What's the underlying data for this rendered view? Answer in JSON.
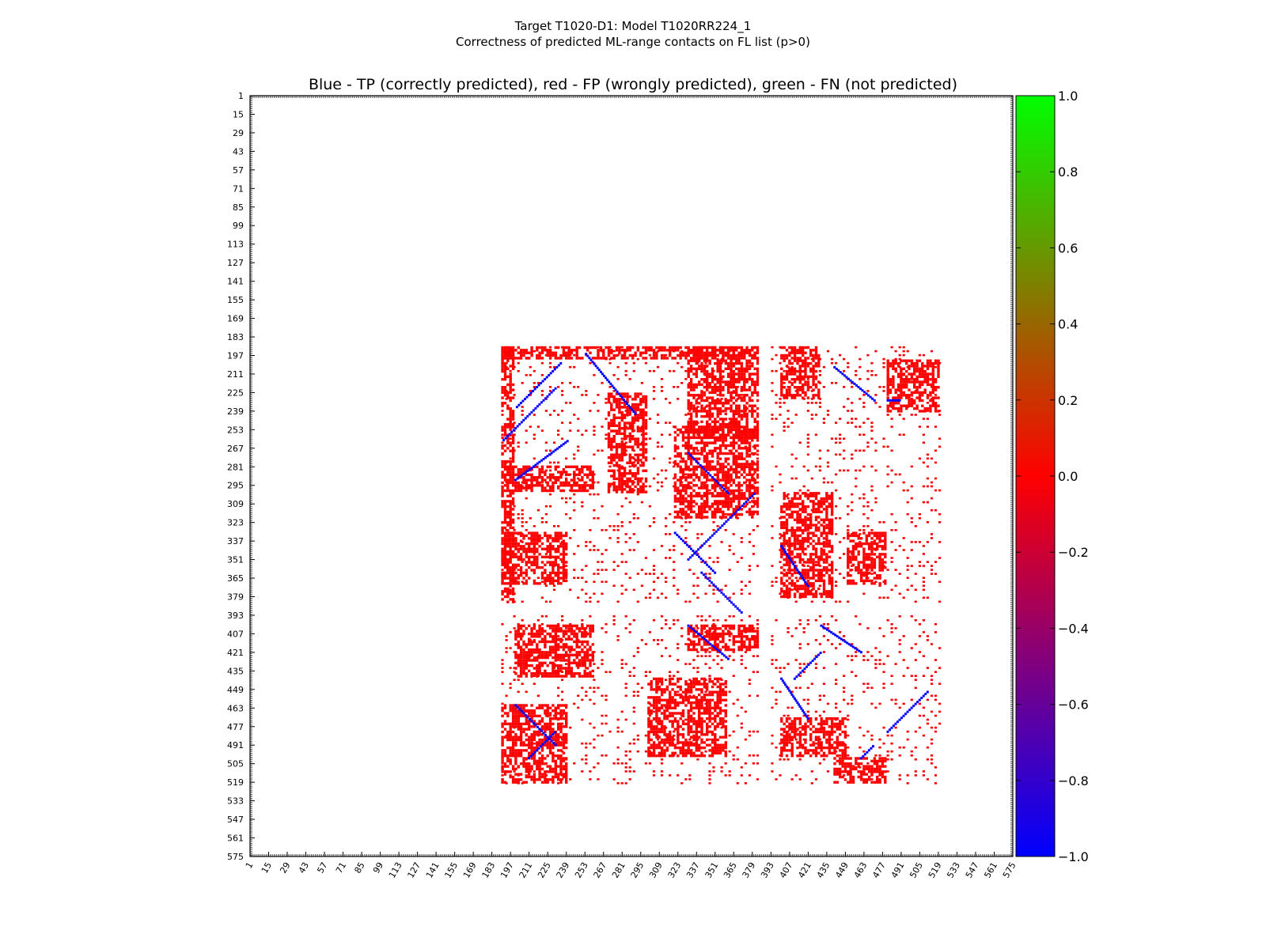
{
  "chart_data": {
    "type": "heatmap",
    "suptitle_line1": "Target T1020-D1: Model T1020RR224_1",
    "suptitle_line2": "Correctness of predicted ML-range contacts on FL list (p>0)",
    "title": "Blue - TP (correctly predicted), red - FP (wrongly predicted), green - FN (not predicted)",
    "xlabel": "",
    "ylabel": "",
    "axis_range": [
      1,
      575
    ],
    "tick_labels": [
      "1",
      "15",
      "29",
      "43",
      "57",
      "71",
      "85",
      "99",
      "113",
      "127",
      "141",
      "155",
      "169",
      "183",
      "197",
      "211",
      "225",
      "239",
      "253",
      "267",
      "281",
      "295",
      "309",
      "323",
      "337",
      "351",
      "365",
      "379",
      "393",
      "407",
      "421",
      "435",
      "449",
      "463",
      "477",
      "491",
      "505",
      "519",
      "533",
      "547",
      "561",
      "575"
    ],
    "y_inverted": true,
    "colorbar": {
      "min": -1.0,
      "max": 1.0,
      "tick_labels": [
        "1.0",
        "0.8",
        "0.6",
        "0.4",
        "0.2",
        "0.0",
        "−0.2",
        "−0.4",
        "−0.6",
        "−0.8",
        "−1.0"
      ],
      "colors": [
        "#0000ff",
        "#ff0000",
        "#00ff00"
      ]
    },
    "legend": [
      {
        "label": "TP (correctly predicted)",
        "value": -1,
        "color": "#0000ff"
      },
      {
        "label": "FP (wrongly predicted)",
        "value": 0,
        "color": "#ff0000"
      },
      {
        "label": "FN (not predicted)",
        "value": 1,
        "color": "#00ff00"
      }
    ],
    "domain_blocks": [
      {
        "rows": [
          190,
          384
        ],
        "cols": [
          190,
          384
        ]
      },
      {
        "rows": [
          190,
          384
        ],
        "cols": [
          393,
          520
        ]
      },
      {
        "rows": [
          393,
          520
        ],
        "cols": [
          190,
          384
        ]
      },
      {
        "rows": [
          393,
          520
        ],
        "cols": [
          393,
          520
        ]
      }
    ],
    "fp_regions": [
      {
        "rows": [
          190,
          200
        ],
        "cols": [
          190,
          384
        ]
      },
      {
        "rows": [
          190,
          384
        ],
        "cols": [
          190,
          200
        ]
      },
      {
        "rows": [
          225,
          300
        ],
        "cols": [
          270,
          300
        ]
      },
      {
        "rows": [
          280,
          300
        ],
        "cols": [
          200,
          260
        ]
      },
      {
        "rows": [
          330,
          370
        ],
        "cols": [
          190,
          240
        ]
      },
      {
        "rows": [
          250,
          320
        ],
        "cols": [
          320,
          384
        ]
      },
      {
        "rows": [
          190,
          260
        ],
        "cols": [
          330,
          384
        ]
      },
      {
        "rows": [
          190,
          230
        ],
        "cols": [
          400,
          430
        ]
      },
      {
        "rows": [
          300,
          380
        ],
        "cols": [
          400,
          440
        ]
      },
      {
        "rows": [
          200,
          240
        ],
        "cols": [
          480,
          520
        ]
      },
      {
        "rows": [
          330,
          370
        ],
        "cols": [
          450,
          480
        ]
      },
      {
        "rows": [
          400,
          440
        ],
        "cols": [
          200,
          260
        ]
      },
      {
        "rows": [
          460,
          520
        ],
        "cols": [
          190,
          240
        ]
      },
      {
        "rows": [
          440,
          500
        ],
        "cols": [
          300,
          360
        ]
      },
      {
        "rows": [
          400,
          420
        ],
        "cols": [
          330,
          384
        ]
      },
      {
        "rows": [
          470,
          500
        ],
        "cols": [
          400,
          450
        ]
      },
      {
        "rows": [
          500,
          520
        ],
        "cols": [
          440,
          480
        ]
      }
    ],
    "tp_diagonals": [
      {
        "from": [
          235,
          201
        ],
        "to": [
          201,
          235
        ]
      },
      {
        "from": [
          260,
          191
        ],
        "to": [
          220,
          231
        ]
      },
      {
        "from": [
          290,
          200
        ],
        "to": [
          260,
          240
        ]
      },
      {
        "from": [
          195,
          253
        ],
        "to": [
          240,
          290
        ]
      },
      {
        "from": [
          270,
          330
        ],
        "to": [
          300,
          360
        ]
      },
      {
        "from": [
          330,
          320
        ],
        "to": [
          360,
          350
        ]
      },
      {
        "from": [
          360,
          340
        ],
        "to": [
          390,
          370
        ]
      },
      {
        "from": [
          350,
          330
        ],
        "to": [
          300,
          380
        ]
      },
      {
        "from": [
          205,
          440
        ],
        "to": [
          230,
          470
        ]
      },
      {
        "from": [
          230,
          480
        ],
        "to": [
          230,
          490
        ]
      },
      {
        "from": [
          340,
          400
        ],
        "to": [
          370,
          420
        ]
      },
      {
        "from": [
          400,
          330
        ],
        "to": [
          425,
          360
        ]
      },
      {
        "from": [
          460,
          200
        ],
        "to": [
          490,
          230
        ]
      },
      {
        "from": [
          500,
          210
        ],
        "to": [
          480,
          230
        ]
      },
      {
        "from": [
          440,
          400
        ],
        "to": [
          470,
          420
        ]
      },
      {
        "from": [
          440,
          410
        ],
        "to": [
          420,
          430
        ]
      },
      {
        "from": [
          400,
          430
        ],
        "to": [
          420,
          460
        ]
      },
      {
        "from": [
          480,
          480
        ],
        "to": [
          450,
          510
        ]
      },
      {
        "from": [
          500,
          460
        ],
        "to": [
          490,
          470
        ]
      }
    ]
  }
}
